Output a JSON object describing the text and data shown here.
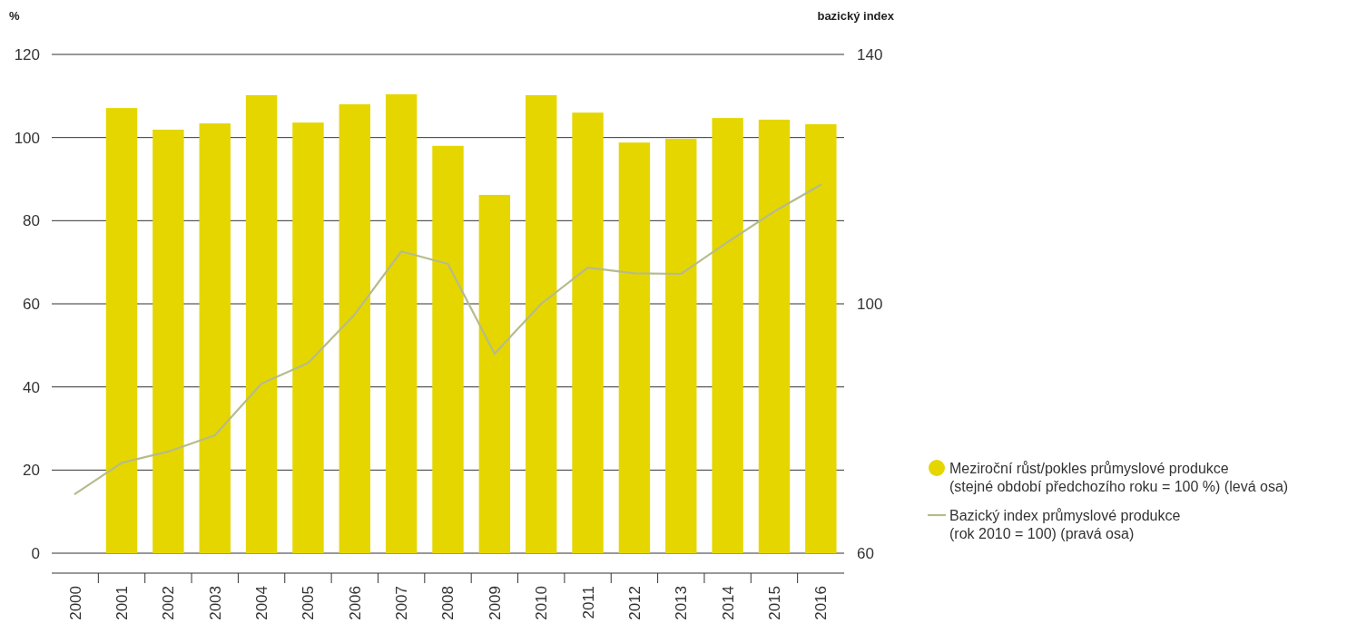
{
  "chart_data": {
    "type": "bar",
    "ylabel": "%",
    "y2label": "bazický index",
    "categories": [
      "2000",
      "2001",
      "2002",
      "2003",
      "2004",
      "2005",
      "2006",
      "2007",
      "2008",
      "2009",
      "2010",
      "2011",
      "2012",
      "2013",
      "2014",
      "2015",
      "2016"
    ],
    "series": [
      {
        "name": "Meziroční růst/pokles průmyslové produkce (stejné období předchozího roku = 100 %) (levá osa)",
        "color": "#e5d600",
        "values": [
          null,
          107.1,
          101.9,
          103.4,
          110.2,
          103.6,
          108.0,
          110.4,
          98.0,
          86.2,
          110.2,
          106.0,
          98.8,
          99.7,
          104.7,
          104.3,
          103.2
        ]
      },
      {
        "name": "Bazický index průmyslové produkce (rok 2010 = 100) (pravá osa)",
        "type": "line",
        "axis": "y2",
        "color": "#b5bb8c",
        "values": [
          69.5,
          74.5,
          76.3,
          78.9,
          87.2,
          90.5,
          98.3,
          108.4,
          106.4,
          92.0,
          100.0,
          105.8,
          104.9,
          104.8,
          109.9,
          114.8,
          119.1
        ]
      }
    ],
    "ylim": [
      0,
      120
    ],
    "yticks": [
      0,
      20,
      40,
      60,
      80,
      100,
      120
    ],
    "y2lim": [
      60,
      140
    ],
    "y2ticks": [
      60,
      100,
      140
    ],
    "grid": "y",
    "legend": "right",
    "marker": "none",
    "line_style": "solid"
  }
}
